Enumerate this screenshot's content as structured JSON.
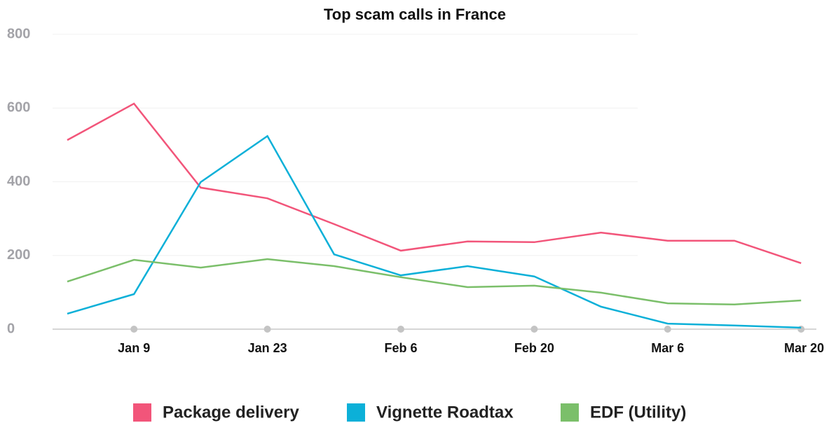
{
  "chart_data": {
    "type": "line",
    "title": "Top scam calls in France",
    "categories": [
      null,
      "Jan 9",
      null,
      "Jan 23",
      null,
      "Feb 6",
      null,
      "Feb 20",
      null,
      "Mar 6",
      null,
      "Mar 20"
    ],
    "series": [
      {
        "name": "Package delivery",
        "color": "#f2557a",
        "values": [
          513,
          612,
          384,
          355,
          285,
          213,
          238,
          236,
          262,
          240,
          240,
          179
        ]
      },
      {
        "name": "Vignette Roadtax",
        "color": "#0cb0d8",
        "values": [
          42,
          95,
          399,
          524,
          203,
          146,
          171,
          143,
          61,
          15,
          10,
          4
        ]
      },
      {
        "name": "EDF (Utility)",
        "color": "#7bbf6a",
        "values": [
          129,
          188,
          167,
          190,
          171,
          141,
          114,
          118,
          99,
          70,
          67,
          78
        ]
      }
    ],
    "ylim": [
      0,
      800
    ],
    "yticks": [
      0,
      200,
      400,
      600,
      800
    ],
    "grid": true
  }
}
